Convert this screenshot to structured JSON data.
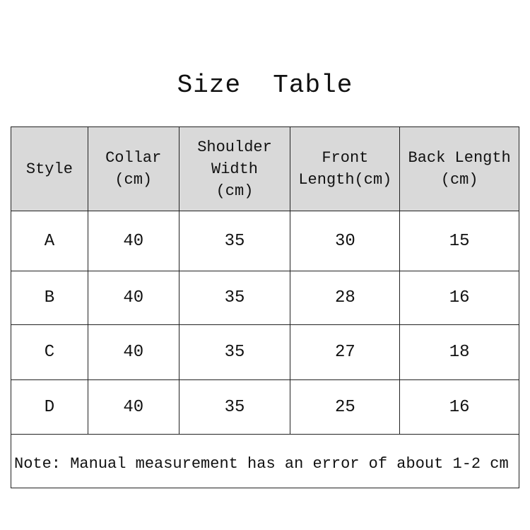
{
  "title": "Size  Table",
  "table": {
    "headers": [
      "Style",
      "Collar\n(cm)",
      "Shoulder\nWidth\n(cm)",
      "Front\nLength(cm)",
      "Back Length\n(cm)"
    ],
    "rows": [
      [
        "A",
        "40",
        "35",
        "30",
        "15"
      ],
      [
        "B",
        "40",
        "35",
        "28",
        "16"
      ],
      [
        "C",
        "40",
        "35",
        "27",
        "18"
      ],
      [
        "D",
        "40",
        "35",
        "25",
        "16"
      ]
    ],
    "note": "Note: Manual measurement has an error of about 1-2 cm"
  },
  "colors": {
    "header_bg": "#d9d9d9",
    "border": "#222222"
  }
}
